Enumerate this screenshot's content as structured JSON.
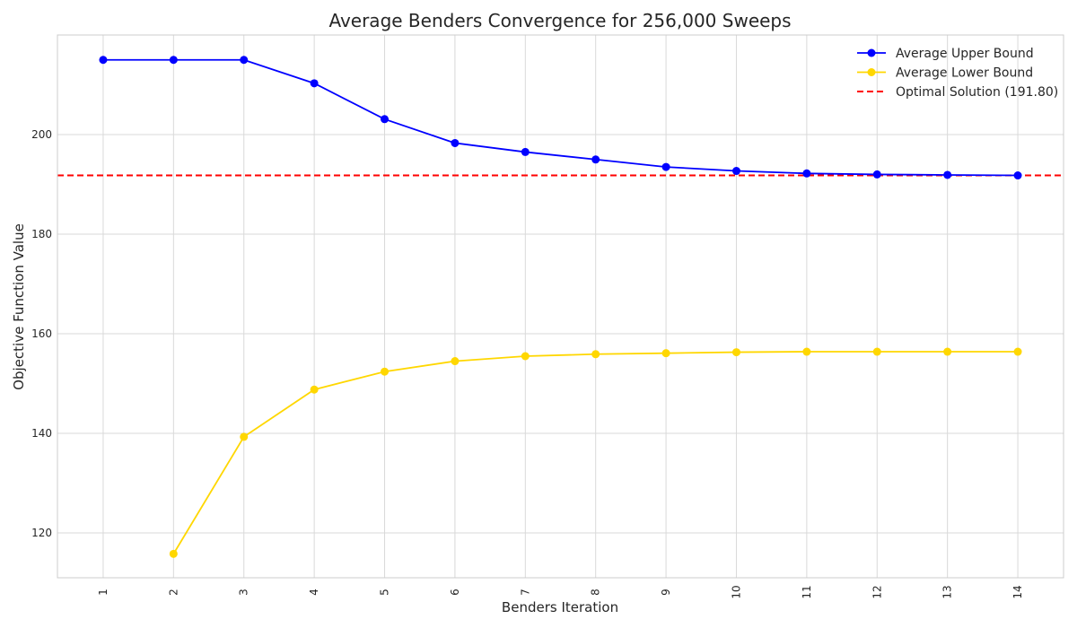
{
  "chart_data": {
    "type": "line",
    "title": "Average Benders Convergence for 256,000 Sweeps",
    "xlabel": "Benders Iteration",
    "ylabel": "Objective Function Value",
    "x": [
      1,
      2,
      3,
      4,
      5,
      6,
      7,
      8,
      9,
      10,
      11,
      12,
      13,
      14
    ],
    "xlim": [
      0.35,
      14.65
    ],
    "ylim": [
      111,
      220
    ],
    "y_ticks": [
      120,
      140,
      160,
      180,
      200
    ],
    "grid": true,
    "legend_position": "top-right",
    "series": [
      {
        "name": "Average Upper Bound",
        "color": "#0000ff",
        "marker": "circle",
        "x": [
          1,
          2,
          3,
          4,
          5,
          6,
          7,
          8,
          9,
          10,
          11,
          12,
          13,
          14
        ],
        "values": [
          215.0,
          215.0,
          215.0,
          210.3,
          203.1,
          198.3,
          196.5,
          195.0,
          193.5,
          192.7,
          192.2,
          192.0,
          191.9,
          191.8
        ]
      },
      {
        "name": "Average Lower Bound",
        "color": "#ffd700",
        "marker": "circle",
        "x": [
          2,
          3,
          4,
          5,
          6,
          7,
          8,
          9,
          10,
          11,
          12,
          13,
          14
        ],
        "values": [
          115.8,
          139.3,
          148.8,
          152.4,
          154.5,
          155.5,
          155.9,
          156.1,
          156.3,
          156.4,
          156.4,
          156.4,
          156.4
        ]
      }
    ],
    "reference_line": {
      "name": "Optimal Solution (191.80)",
      "value": 191.8,
      "color": "#ff0000",
      "style": "dashed"
    }
  }
}
